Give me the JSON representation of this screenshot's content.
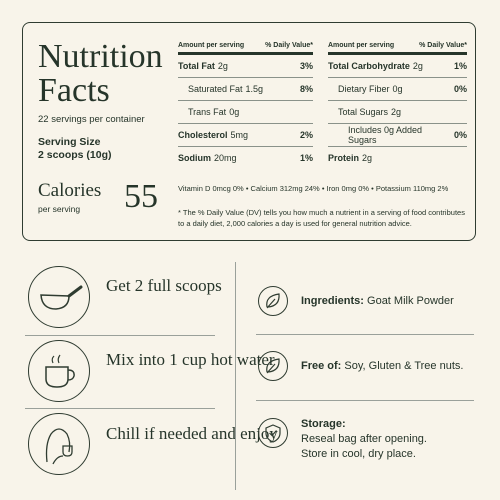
{
  "nutrition": {
    "title": [
      "Nutrition",
      "Facts"
    ],
    "servings": "22 servings per container",
    "serving_size_label": "Serving Size",
    "serving_size": "2 scoops (10g)",
    "calories_label": "Calories",
    "calories_sub": "per serving",
    "calories": 55,
    "left_table": {
      "header": [
        "Amount per serving",
        "% Daily Value*"
      ],
      "rows": [
        [
          "Total Fat",
          "2g",
          "3%"
        ],
        [
          "Saturated Fat",
          "1.5g",
          "8%"
        ],
        [
          "Trans Fat",
          "0g"
        ],
        [
          "Cholesterol",
          "5mg",
          "2%"
        ],
        [
          "Sodium",
          "20mg",
          "1%"
        ]
      ]
    },
    "right_table": {
      "header": [
        "Amount per serving",
        "% Daily Value*"
      ],
      "rows": [
        [
          "Total Carbohydrate",
          "2g",
          "1%"
        ],
        [
          "Dietary Fiber",
          "0g",
          "0%"
        ],
        [
          "Total Sugars",
          "2g"
        ],
        [
          "Includes 0g Added Sugars",
          "0%"
        ],
        [
          "Protein",
          "2g"
        ]
      ]
    },
    "vitamins": [
      "Vitamin D 0mcg 0%",
      "Calcium 312mg 24%",
      "Iron 0mg 0%",
      "Potassium 110mg 2%"
    ],
    "footnote": "* The % Daily Value (DV) tells you how much a nutrient in a serving of food contributes to a daily diet, 2,000 calories a day is used for general nutrition advice."
  },
  "steps": [
    "Get 2 full scoops",
    "Mix into 1 cup hot water",
    "Chill if needed and enjoy"
  ],
  "info": [
    {
      "label": "Ingredients:",
      "text": "Goat Milk Powder"
    },
    {
      "label": "Free of:",
      "text": "Soy, Gluten & Tree nuts."
    },
    {
      "label": "Storage:",
      "lines": [
        "Reseal bag after opening.",
        "Store in cool, dry place."
      ]
    }
  ]
}
